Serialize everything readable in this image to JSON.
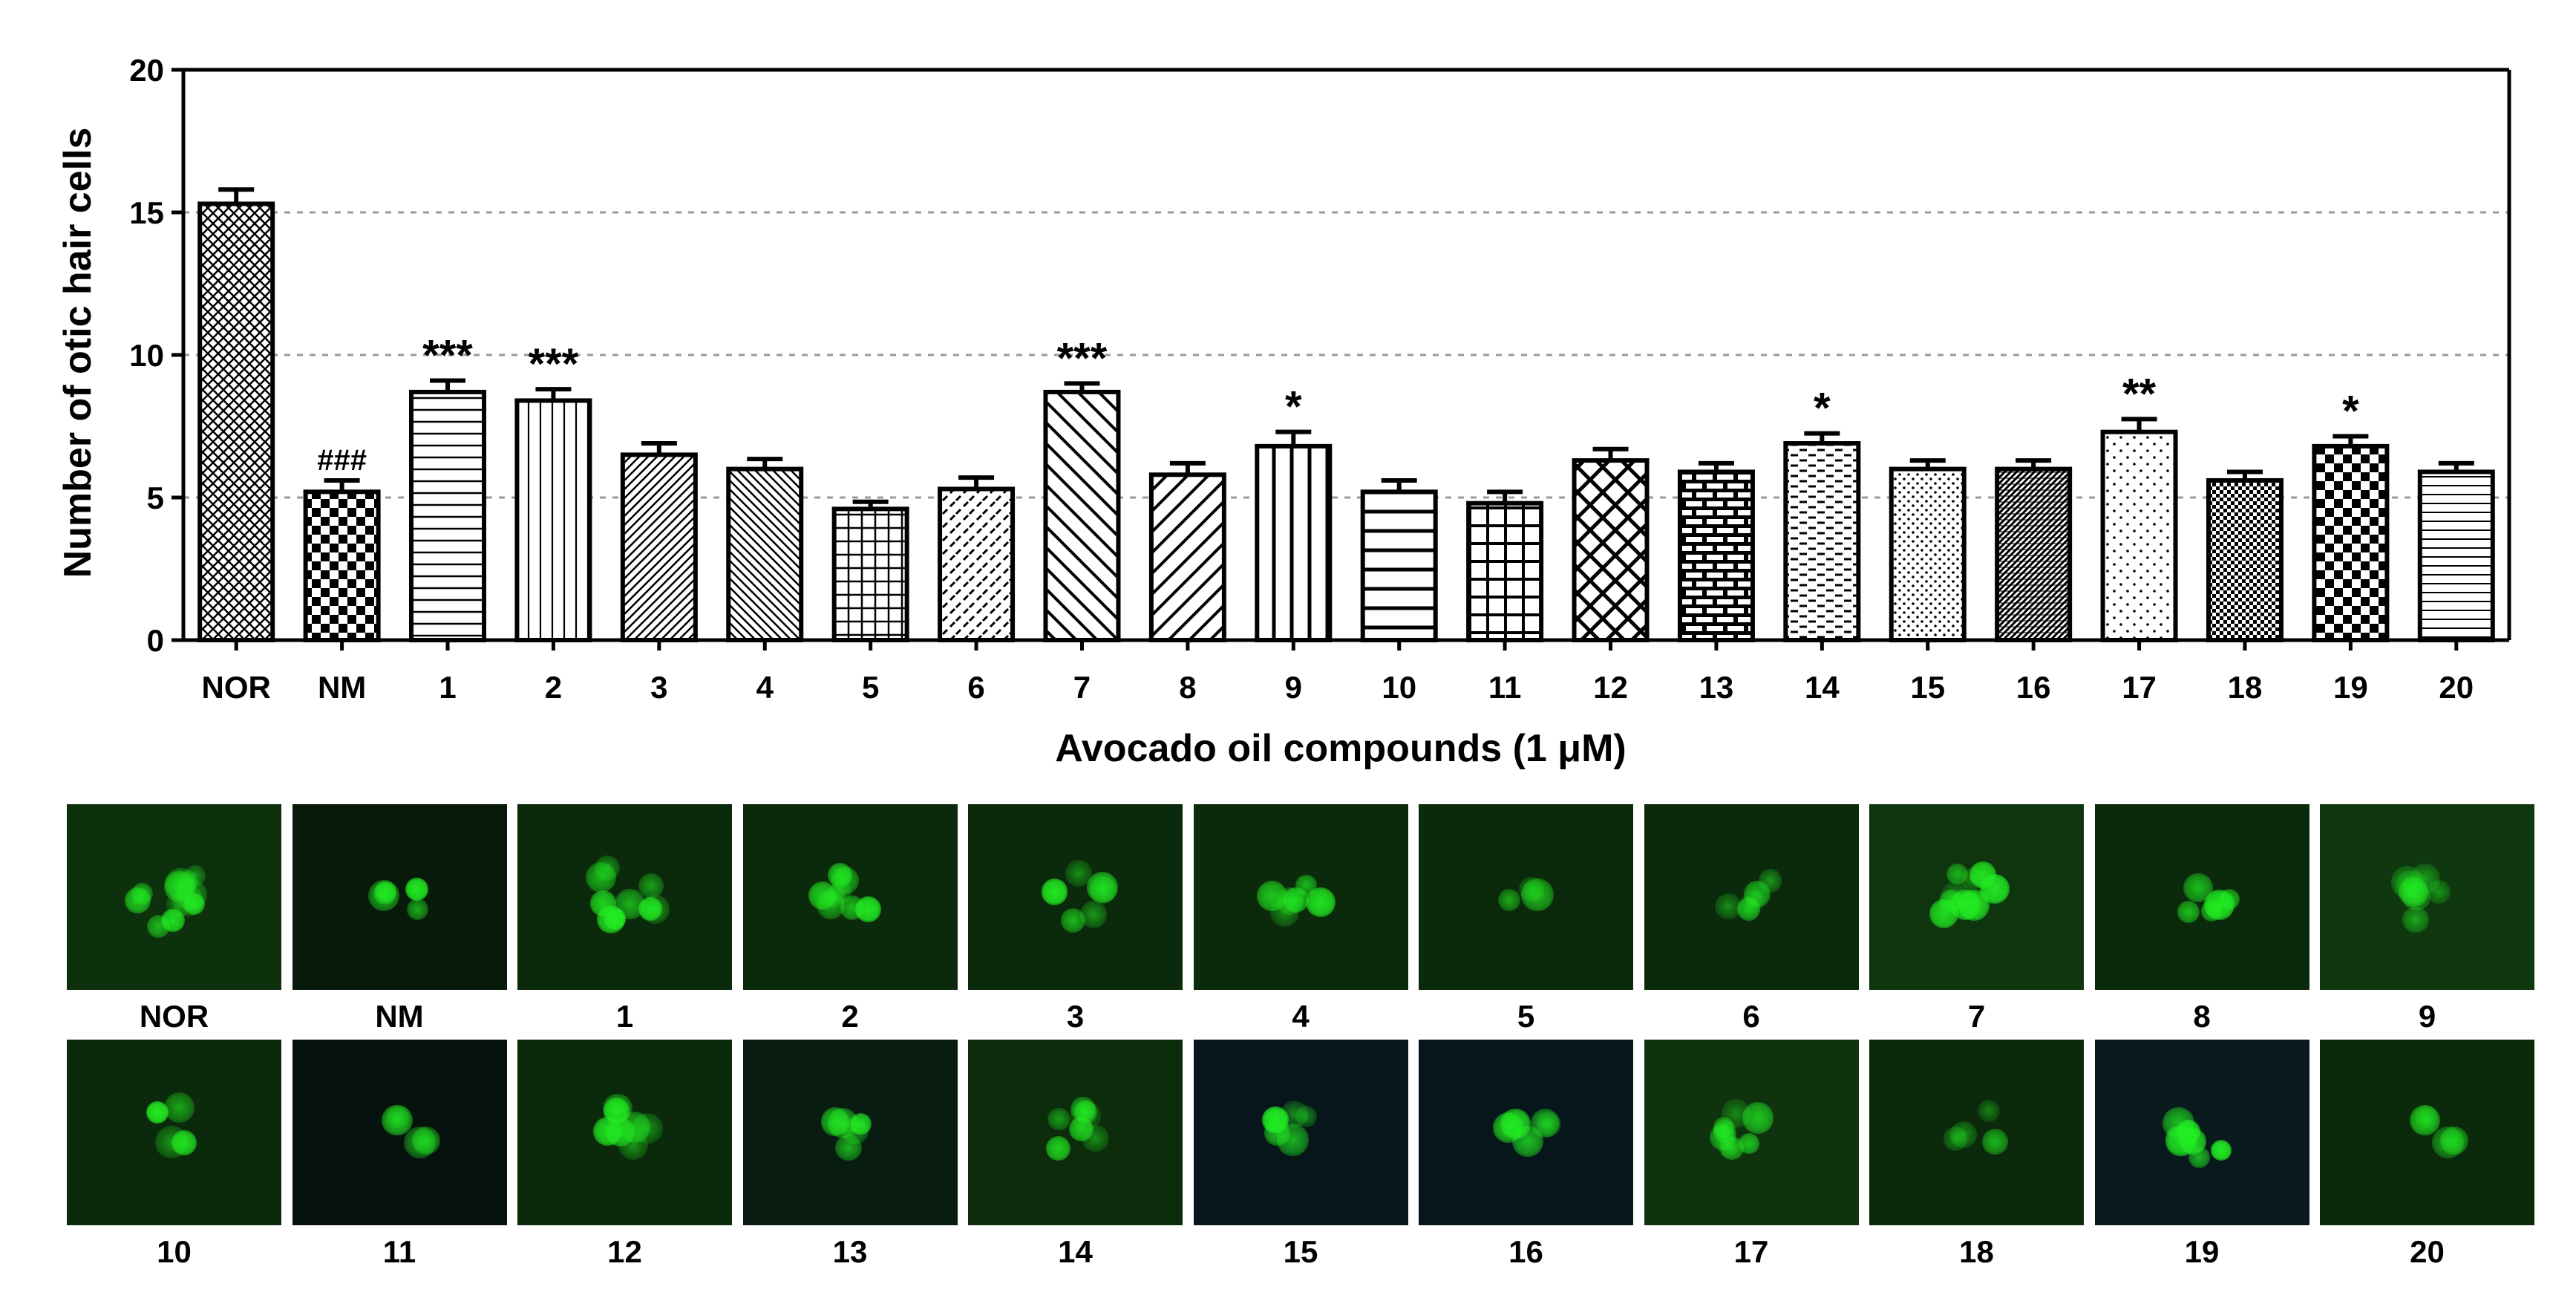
{
  "chart_data": {
    "type": "bar",
    "xlabel": "Avocado oil compounds (1 μM)",
    "ylabel": "Number of otic hair cells",
    "ylim": [
      0,
      20
    ],
    "yticks": [
      "0",
      "5",
      "10",
      "15",
      "20"
    ],
    "grid": "dashed horizontal at 5, 10, 15",
    "categories": [
      "NOR",
      "NM",
      "1",
      "2",
      "3",
      "4",
      "5",
      "6",
      "7",
      "8",
      "9",
      "10",
      "11",
      "12",
      "13",
      "14",
      "15",
      "16",
      "17",
      "18",
      "19",
      "20"
    ],
    "values": [
      15.3,
      5.2,
      8.7,
      8.4,
      6.5,
      6.0,
      4.6,
      5.3,
      8.7,
      5.8,
      6.8,
      5.2,
      4.8,
      6.3,
      5.9,
      6.9,
      6.0,
      6.0,
      7.3,
      5.6,
      6.8,
      5.9
    ],
    "errors": [
      0.5,
      0.4,
      0.4,
      0.4,
      0.4,
      0.35,
      0.25,
      0.4,
      0.3,
      0.4,
      0.5,
      0.4,
      0.4,
      0.4,
      0.3,
      0.35,
      0.3,
      0.3,
      0.45,
      0.3,
      0.35,
      0.3
    ],
    "annotations": [
      "",
      "###",
      "***",
      "***",
      "",
      "",
      "",
      "",
      "***",
      "",
      "*",
      "",
      "",
      "",
      "",
      "*",
      "",
      "",
      "**",
      "",
      "*",
      ""
    ]
  },
  "image_panels": {
    "row1_labels": [
      "NOR",
      "NM",
      "1",
      "2",
      "3",
      "4",
      "5",
      "6",
      "7",
      "8",
      "9"
    ],
    "row2_labels": [
      "10",
      "11",
      "12",
      "13",
      "14",
      "15",
      "16",
      "17",
      "18",
      "19",
      "20"
    ]
  },
  "colors": {
    "bar_stroke": "#000000",
    "grid": "#9a9a9a",
    "fluorescence": "#22ee22",
    "tile_background": "#0b2a0b"
  }
}
